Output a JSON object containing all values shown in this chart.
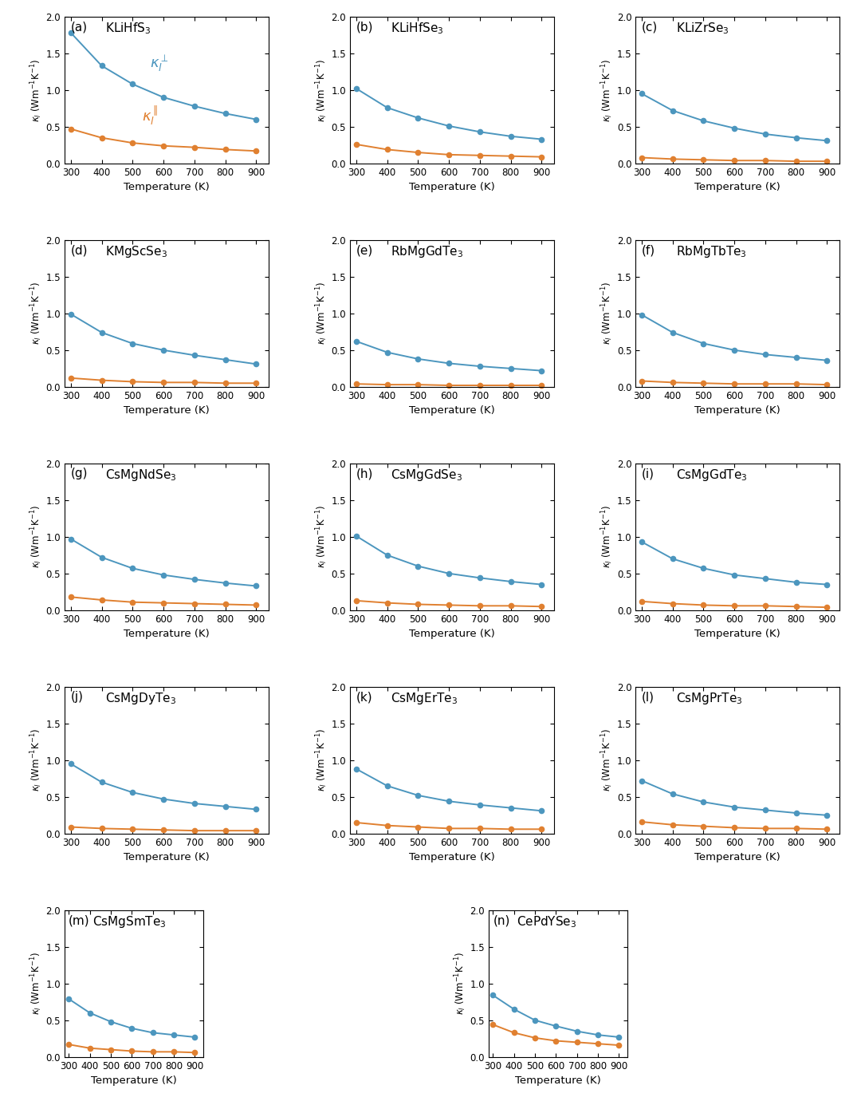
{
  "temperature": [
    300,
    400,
    500,
    600,
    700,
    800,
    900
  ],
  "panels": [
    {
      "label": "(a)",
      "title": "KLiHfS$_3$",
      "blue": [
        1.78,
        1.33,
        1.08,
        0.9,
        0.78,
        0.68,
        0.6
      ],
      "orange": [
        0.47,
        0.35,
        0.28,
        0.24,
        0.22,
        0.19,
        0.17
      ],
      "show_legend": true
    },
    {
      "label": "(b)",
      "title": "KLiHfSe$_3$",
      "blue": [
        1.02,
        0.76,
        0.62,
        0.51,
        0.43,
        0.37,
        0.33
      ],
      "orange": [
        0.26,
        0.19,
        0.15,
        0.12,
        0.11,
        0.1,
        0.09
      ],
      "show_legend": false
    },
    {
      "label": "(c)",
      "title": "KLiZrSe$_3$",
      "blue": [
        0.95,
        0.72,
        0.58,
        0.48,
        0.4,
        0.35,
        0.31
      ],
      "orange": [
        0.08,
        0.06,
        0.05,
        0.04,
        0.04,
        0.03,
        0.03
      ],
      "show_legend": false
    },
    {
      "label": "(d)",
      "title": "KMgScSe$_3$",
      "blue": [
        0.99,
        0.74,
        0.59,
        0.5,
        0.43,
        0.37,
        0.31
      ],
      "orange": [
        0.12,
        0.09,
        0.07,
        0.06,
        0.06,
        0.05,
        0.05
      ],
      "show_legend": false
    },
    {
      "label": "(e)",
      "title": "RbMgGdTe$_3$",
      "blue": [
        0.62,
        0.47,
        0.38,
        0.32,
        0.28,
        0.25,
        0.22
      ],
      "orange": [
        0.04,
        0.03,
        0.03,
        0.02,
        0.02,
        0.02,
        0.02
      ],
      "show_legend": false
    },
    {
      "label": "(f)",
      "title": "RbMgTbTe$_3$",
      "blue": [
        0.98,
        0.74,
        0.59,
        0.5,
        0.44,
        0.4,
        0.36
      ],
      "orange": [
        0.08,
        0.06,
        0.05,
        0.04,
        0.04,
        0.04,
        0.03
      ],
      "show_legend": false
    },
    {
      "label": "(g)",
      "title": "CsMgNdSe$_3$",
      "blue": [
        0.97,
        0.72,
        0.57,
        0.48,
        0.42,
        0.37,
        0.33
      ],
      "orange": [
        0.18,
        0.14,
        0.11,
        0.1,
        0.09,
        0.08,
        0.07
      ],
      "show_legend": false
    },
    {
      "label": "(h)",
      "title": "CsMgGdSe$_3$",
      "blue": [
        1.01,
        0.75,
        0.6,
        0.5,
        0.44,
        0.39,
        0.35
      ],
      "orange": [
        0.13,
        0.1,
        0.08,
        0.07,
        0.06,
        0.06,
        0.05
      ],
      "show_legend": false
    },
    {
      "label": "(i)",
      "title": "CsMgGdTe$_3$",
      "blue": [
        0.93,
        0.7,
        0.57,
        0.48,
        0.43,
        0.38,
        0.35
      ],
      "orange": [
        0.12,
        0.09,
        0.07,
        0.06,
        0.06,
        0.05,
        0.04
      ],
      "show_legend": false
    },
    {
      "label": "(j)",
      "title": "CsMgDyTe$_3$",
      "blue": [
        0.95,
        0.7,
        0.56,
        0.47,
        0.41,
        0.37,
        0.33
      ],
      "orange": [
        0.09,
        0.07,
        0.06,
        0.05,
        0.04,
        0.04,
        0.04
      ],
      "show_legend": false
    },
    {
      "label": "(k)",
      "title": "CsMgErTe$_3$",
      "blue": [
        0.88,
        0.65,
        0.52,
        0.44,
        0.39,
        0.35,
        0.31
      ],
      "orange": [
        0.15,
        0.11,
        0.09,
        0.07,
        0.07,
        0.06,
        0.06
      ],
      "show_legend": false
    },
    {
      "label": "(l)",
      "title": "CsMgPrTe$_3$",
      "blue": [
        0.72,
        0.54,
        0.43,
        0.36,
        0.32,
        0.28,
        0.25
      ],
      "orange": [
        0.16,
        0.12,
        0.1,
        0.08,
        0.07,
        0.07,
        0.06
      ],
      "show_legend": false
    },
    {
      "label": "(m)",
      "title": "CsMgSmTe$_3$",
      "blue": [
        0.79,
        0.6,
        0.48,
        0.39,
        0.33,
        0.3,
        0.27
      ],
      "orange": [
        0.17,
        0.12,
        0.1,
        0.08,
        0.07,
        0.07,
        0.06
      ],
      "show_legend": false
    },
    {
      "label": "(n)",
      "title": "CePdYSe$_3$",
      "blue": [
        0.84,
        0.65,
        0.5,
        0.42,
        0.35,
        0.3,
        0.27
      ],
      "orange": [
        0.44,
        0.33,
        0.26,
        0.22,
        0.2,
        0.18,
        0.16
      ],
      "show_legend": false
    }
  ],
  "blue_color": "#4C96BE",
  "orange_color": "#E08030",
  "ylabel": "$\\kappa_l$ (Wm$^{-1}$K$^{-1}$)",
  "xlabel": "Temperature (K)",
  "ylim": [
    0.0,
    2.0
  ],
  "yticks": [
    0.0,
    0.5,
    1.0,
    1.5,
    2.0
  ],
  "xticks": [
    300,
    400,
    500,
    600,
    700,
    800,
    900
  ],
  "legend_perp": "$\\kappa_l^{\\perp}$",
  "legend_para": "$\\kappa_l^{\\parallel}$"
}
